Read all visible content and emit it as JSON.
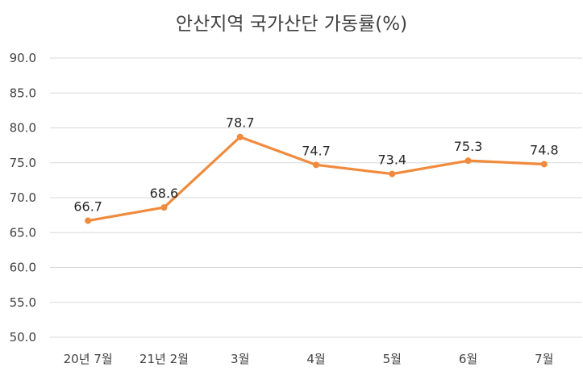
{
  "chart_data": {
    "type": "line",
    "title": "안산지역 국가산단 가동률(%)",
    "categories": [
      "20년 7월",
      "21년 2월",
      "3월",
      "4월",
      "5월",
      "6월",
      "7월"
    ],
    "series": [
      {
        "values": [
          66.7,
          68.6,
          78.7,
          74.7,
          73.4,
          75.3,
          74.8
        ],
        "color": "#f08a3c"
      }
    ],
    "data_labels": [
      "66.7",
      "68.6",
      "78.7",
      "74.7",
      "73.4",
      "75.3",
      "74.8"
    ],
    "ylim": [
      50,
      90
    ],
    "yticks": [
      "50.0",
      "55.0",
      "60.0",
      "65.0",
      "70.0",
      "75.0",
      "80.0",
      "85.0",
      "90.0"
    ],
    "grid": true,
    "legend": "none"
  }
}
